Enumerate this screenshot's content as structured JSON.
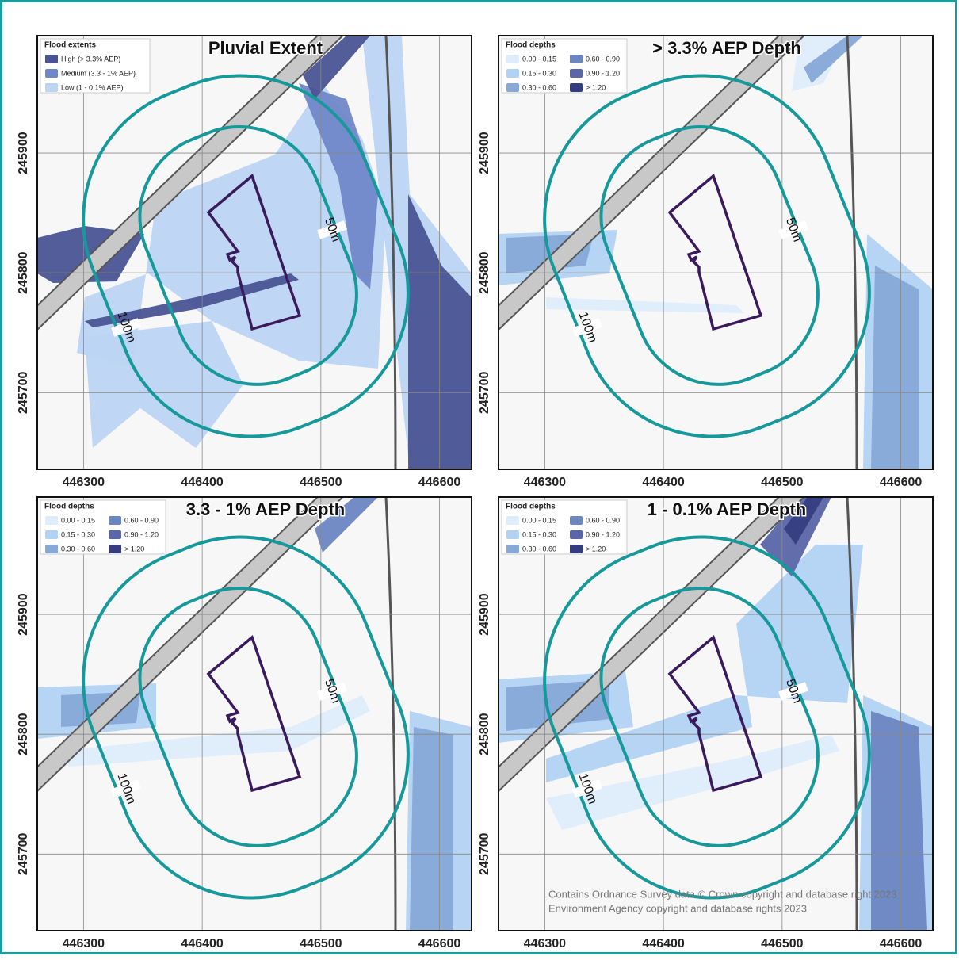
{
  "panels": [
    {
      "title": "Pluvial Extent",
      "legend": {
        "title": "Flood extents",
        "items": [
          {
            "label": "High (> 3.3% AEP)",
            "color": "#4a5494"
          },
          {
            "label": "Medium (3.3 - 1% AEP)",
            "color": "#7088c8"
          },
          {
            "label": "Low (1 - 0.1% AEP)",
            "color": "#bcd5f4"
          }
        ]
      },
      "buffer_labels": [
        "50m",
        "100m"
      ],
      "xlim": [
        446261,
        446627
      ],
      "ylim": [
        245636,
        245998
      ],
      "xticks": [
        446300,
        446400,
        446500,
        446600
      ],
      "yticks": [
        245700,
        245800,
        245900
      ]
    },
    {
      "title": "> 3.3% AEP Depth",
      "legend": {
        "title": "Flood depths",
        "items": [
          {
            "label": "0.00 - 0.15",
            "color": "#deecfb"
          },
          {
            "label": "0.15 - 0.30",
            "color": "#b2d2f3"
          },
          {
            "label": "0.30 - 0.60",
            "color": "#86a9d8"
          },
          {
            "label": "0.60 - 0.90",
            "color": "#6c86c2"
          },
          {
            "label": "0.90 - 1.20",
            "color": "#5a66a8"
          },
          {
            "label": "> 1.20",
            "color": "#343d80"
          }
        ]
      },
      "buffer_labels": [
        "50m",
        "100m"
      ],
      "xlim": [
        446261,
        446627
      ],
      "ylim": [
        245636,
        245998
      ],
      "xticks": [
        446300,
        446400,
        446500,
        446600
      ],
      "yticks": [
        245700,
        245800,
        245900
      ]
    },
    {
      "title": "3.3 - 1% AEP Depth",
      "legend": {
        "title": "Flood depths",
        "items": [
          {
            "label": "0.00 - 0.15",
            "color": "#deecfb"
          },
          {
            "label": "0.15 - 0.30",
            "color": "#b2d2f3"
          },
          {
            "label": "0.30 - 0.60",
            "color": "#86a9d8"
          },
          {
            "label": "0.60 - 0.90",
            "color": "#6c86c2"
          },
          {
            "label": "0.90 - 1.20",
            "color": "#5a66a8"
          },
          {
            "label": "> 1.20",
            "color": "#343d80"
          }
        ]
      },
      "buffer_labels": [
        "50m",
        "100m"
      ],
      "xlim": [
        446261,
        446627
      ],
      "ylim": [
        245636,
        245998
      ],
      "xticks": [
        446300,
        446400,
        446500,
        446600
      ],
      "yticks": [
        245700,
        245800,
        245900
      ]
    },
    {
      "title": "1 - 0.1% AEP Depth",
      "legend": {
        "title": "Flood depths",
        "items": [
          {
            "label": "0.00 - 0.15",
            "color": "#deecfb"
          },
          {
            "label": "0.15 - 0.30",
            "color": "#b2d2f3"
          },
          {
            "label": "0.30 - 0.60",
            "color": "#86a9d8"
          },
          {
            "label": "0.60 - 0.90",
            "color": "#6c86c2"
          },
          {
            "label": "0.90 - 1.20",
            "color": "#5a66a8"
          },
          {
            "label": "> 1.20",
            "color": "#343d80"
          }
        ]
      },
      "buffer_labels": [
        "50m",
        "100m"
      ],
      "xlim": [
        446261,
        446627
      ],
      "ylim": [
        245636,
        245998
      ],
      "xticks": [
        446300,
        446400,
        446500,
        446600
      ],
      "yticks": [
        245700,
        245800,
        245900
      ]
    }
  ],
  "attribution": [
    "Contains Ordnance Survey data © Crown copyright and database right 2023",
    "Environment Agency copyright and database rights 2023"
  ]
}
